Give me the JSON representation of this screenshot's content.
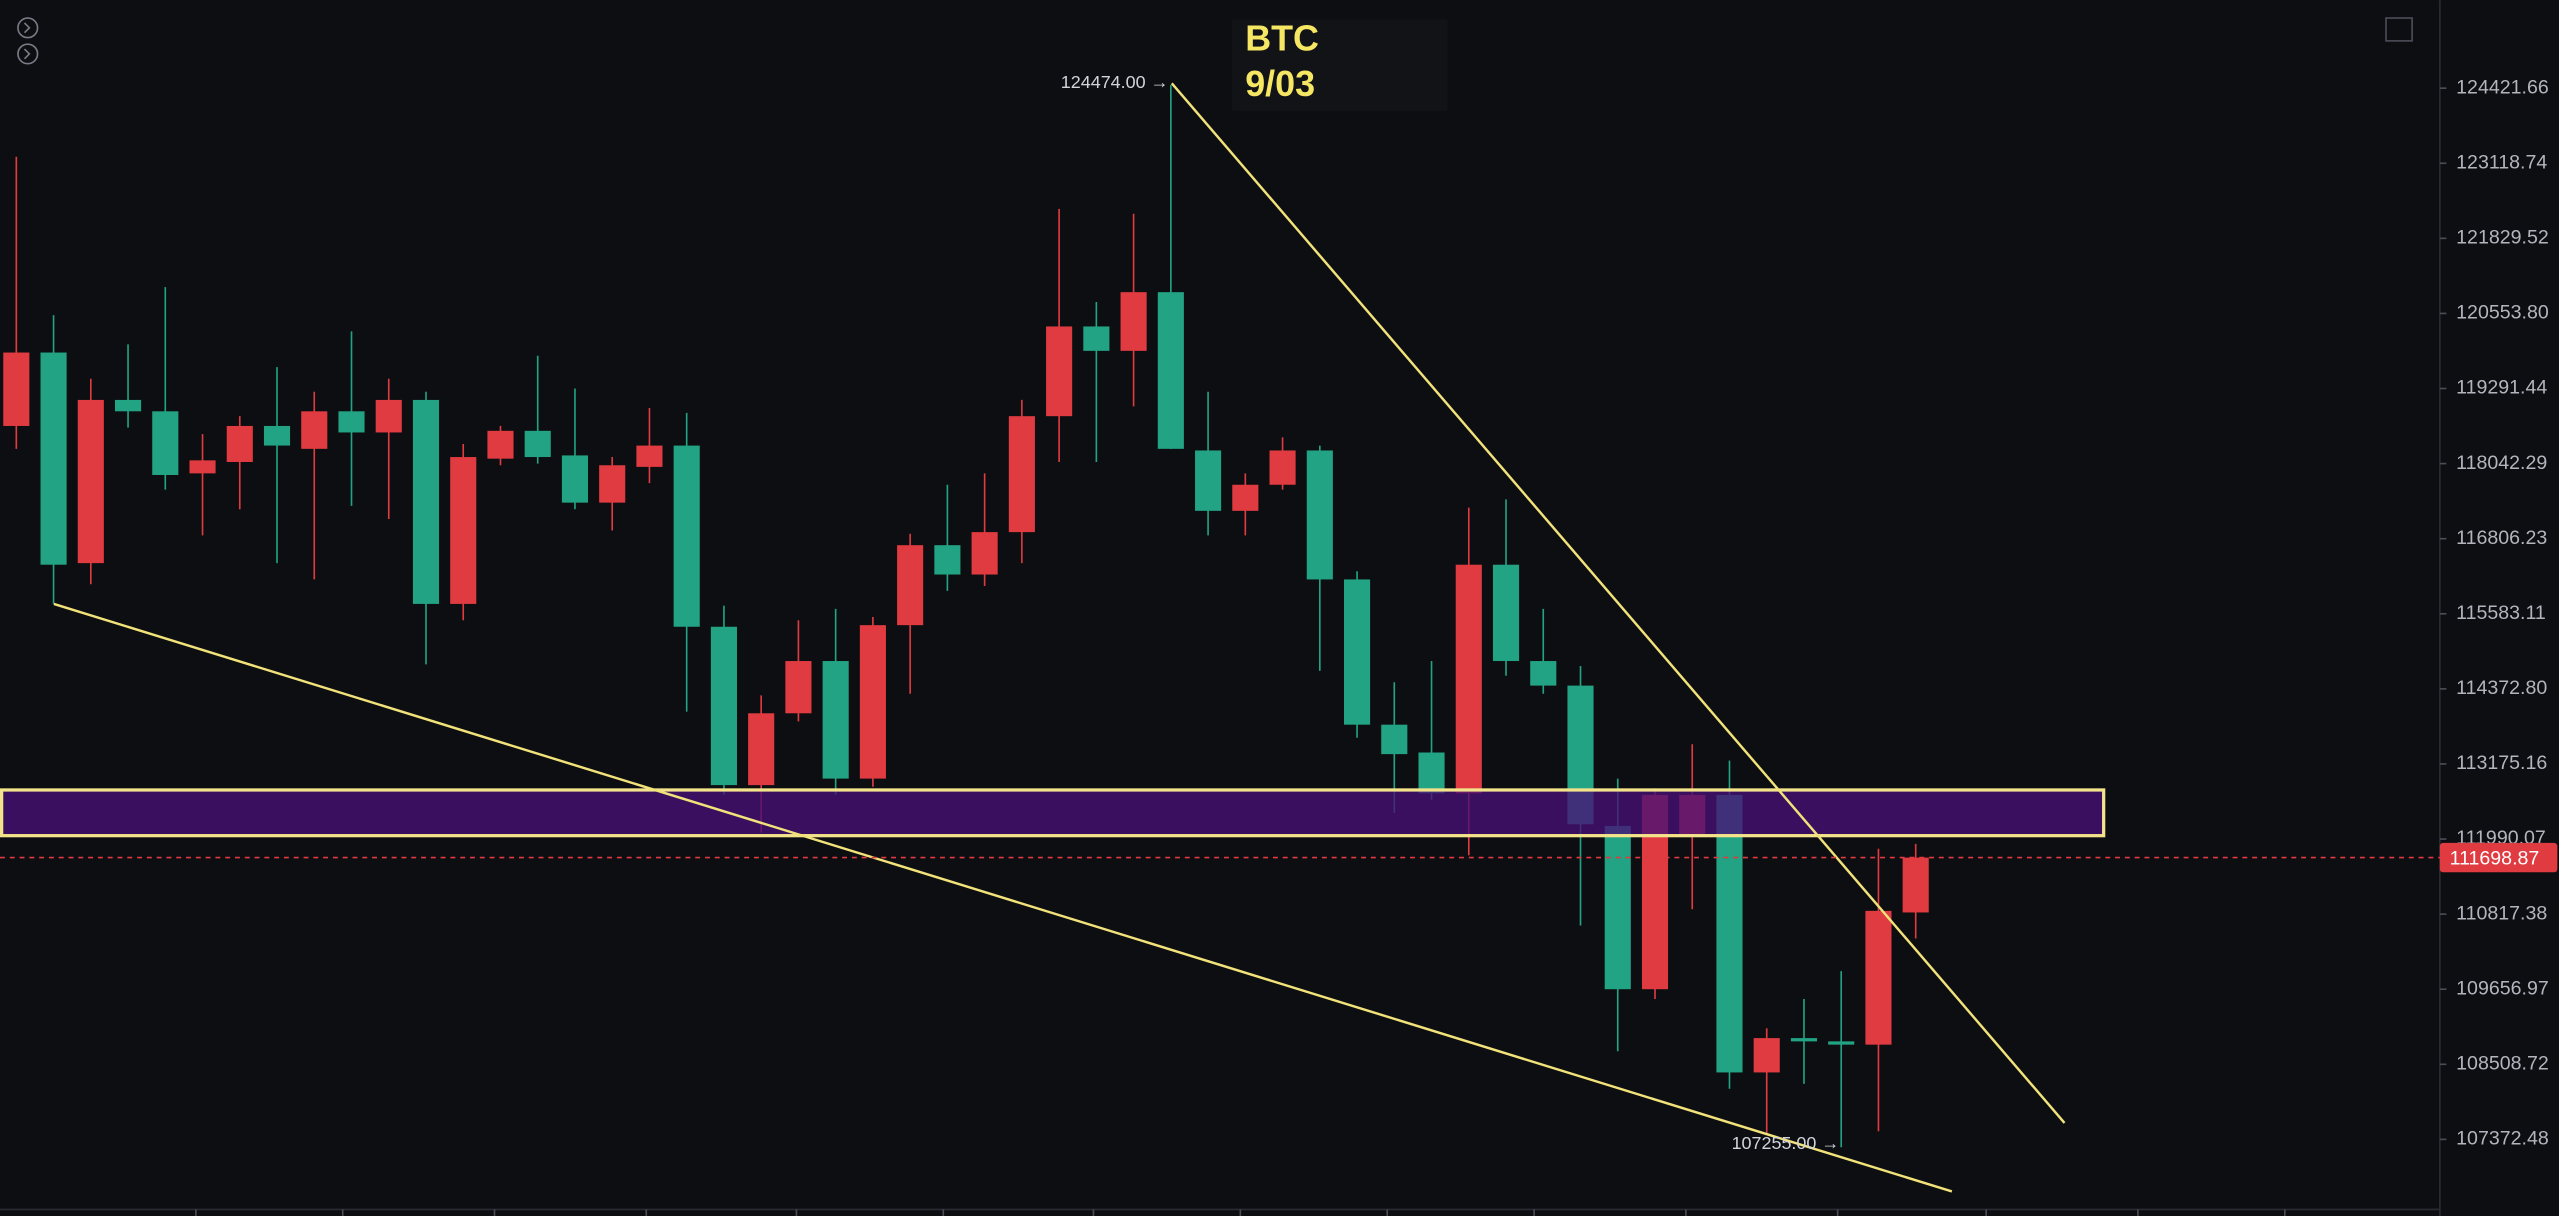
{
  "chart_data": {
    "type": "candlestick",
    "title": "BTC",
    "subtitle": "9/03",
    "log_scale": true,
    "grid": false,
    "up_color": "#df3b41",
    "down_color": "#22a383",
    "ylim": [
      125968,
      106348
    ],
    "yticks": [
      124421.66,
      123118.74,
      121829.52,
      {
        "value": 120553.8,
        "label": "120553.80"
      },
      119291.44,
      118042.29,
      116806.23,
      115583.11,
      {
        "value": 114372.8,
        "label": "114372.80"
      },
      113175.16,
      111990.07,
      110817.38,
      109656.97,
      108508.72,
      107372.48
    ],
    "open": [
      118667,
      119895,
      116407,
      119101,
      118911,
      117881,
      118069,
      118667,
      118287,
      118911,
      118559,
      119101,
      115743,
      118124,
      118586,
      118178,
      117398,
      117988,
      118341,
      115373,
      112840,
      113982,
      114820,
      112943,
      115399,
      116700,
      116221,
      116914,
      118830,
      120334,
      119923,
      120914,
      118260,
      117263,
      117693,
      118260,
      116141,
      113800,
      113357,
      112711,
      116381,
      114820,
      114425,
      112196,
      109657,
      112067,
      112685,
      108385,
      108908,
      108858,
      108808,
      110843
    ],
    "high": [
      123232,
      120526,
      119456,
      120032,
      121000,
      118532,
      118830,
      119649,
      119237,
      120252,
      119456,
      119237,
      118368,
      118667,
      119841,
      119291,
      118151,
      118967,
      118884,
      115716,
      114269,
      115478,
      115663,
      115530,
      116887,
      117693,
      117881,
      119101,
      122334,
      120748,
      122250,
      124474,
      119237,
      117881,
      118477,
      118341,
      116274,
      114478,
      114820,
      117317,
      117451,
      115663,
      114741,
      112943,
      112788,
      113488,
      113227,
      109058,
      109507,
      109935,
      111837,
      111914
    ],
    "low": [
      118287,
      115743,
      116062,
      118640,
      117612,
      116860,
      117290,
      116407,
      116141,
      117344,
      117129,
      114767,
      115478,
      118015,
      118042,
      117290,
      116941,
      117720,
      114009,
      112685,
      112093,
      113852,
      112685,
      112814,
      114295,
      115955,
      116035,
      116407,
      118069,
      118069,
      118993,
      118287,
      116860,
      116860,
      117612,
      114662,
      113592,
      112402,
      112608,
      111735,
      114583,
      114295,
      110641,
      108708,
      109507,
      110894,
      108138,
      107446,
      108212,
      107255,
      107495,
      110439
    ],
    "close": [
      119895,
      116381,
      119101,
      118911,
      117854,
      118096,
      118667,
      118341,
      118911,
      118559,
      119101,
      115743,
      118151,
      118586,
      118151,
      117398,
      118015,
      118341,
      115373,
      112840,
      113982,
      114820,
      112943,
      115399,
      116700,
      116221,
      116914,
      118830,
      120334,
      119923,
      120914,
      118287,
      117263,
      117693,
      118260,
      116141,
      113800,
      113331,
      112711,
      116381,
      114820,
      114425,
      112222,
      109657,
      112685,
      112685,
      108385,
      108908,
      108858,
      108808,
      110868,
      111698.87
    ],
    "annotations": [
      "124474.00 →",
      "107255.00 →"
    ]
  }
}
